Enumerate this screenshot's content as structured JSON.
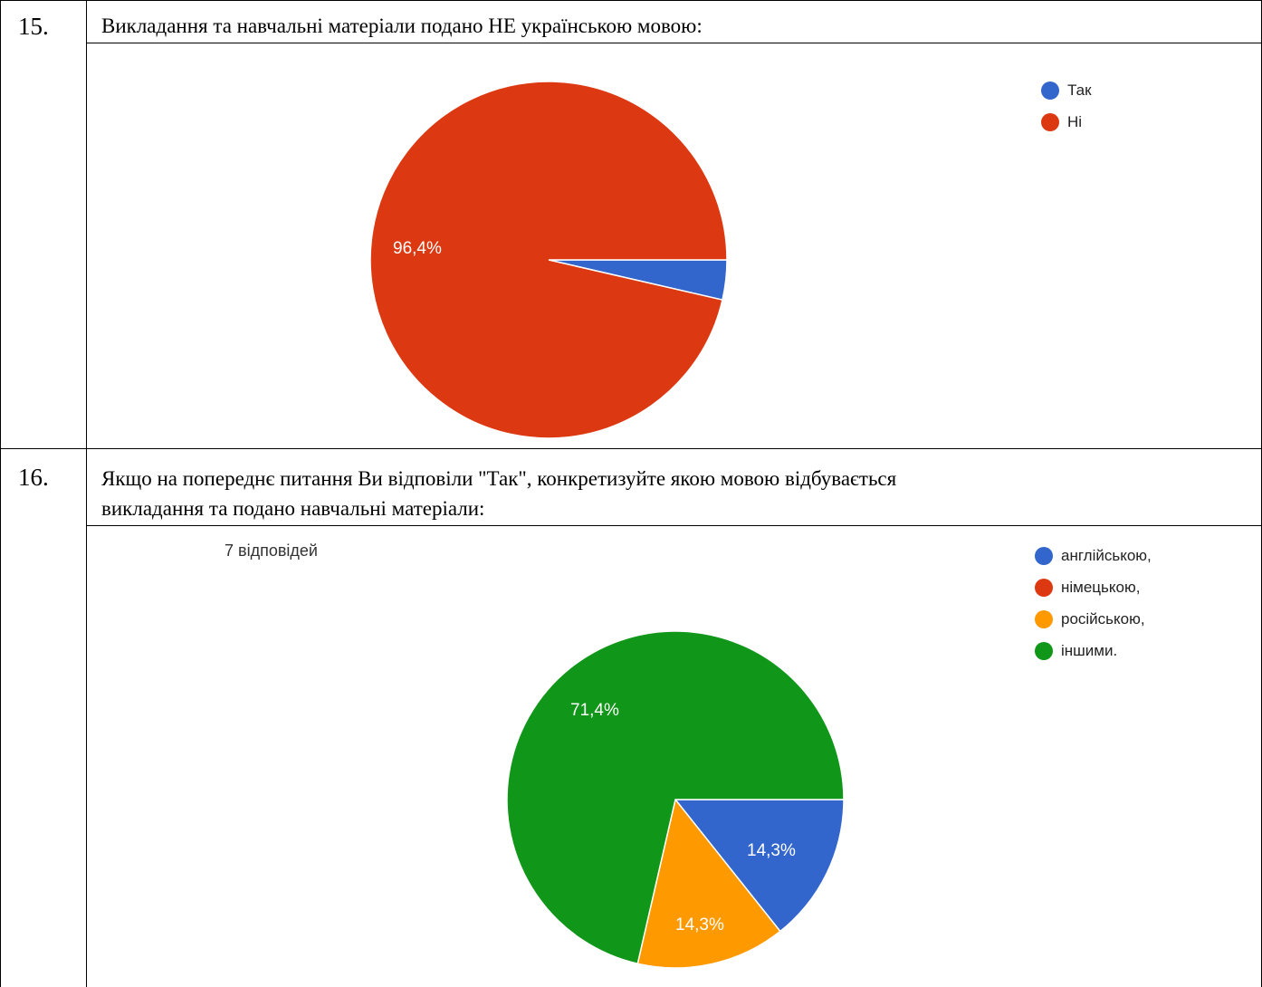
{
  "questions": [
    {
      "number": "15.",
      "text_lines": [
        "Викладання та навчальні матеріали подано НЕ українською мовою:"
      ],
      "count_label": "",
      "chart_data": {
        "type": "pie",
        "title": "",
        "categories": [
          "Так",
          "Ні"
        ],
        "values": [
          3.6,
          96.4
        ],
        "colors": [
          "#3366cc",
          "#dc3912"
        ],
        "slice_labels": [
          "",
          "96,4%"
        ],
        "legend_position": "top-right"
      }
    },
    {
      "number": "16.",
      "text_lines": [
        "Якщо на попереднє питання Ви відповіли \"Так\", конкретизуйте якою мовою відбувається",
        "викладання та подано навчальні матеріали:"
      ],
      "count_label": "7 відповідей",
      "chart_data": {
        "type": "pie",
        "title": "",
        "categories": [
          "англійською,",
          "німецькою,",
          "російською,",
          "іншими."
        ],
        "values": [
          14.3,
          0,
          14.3,
          71.4
        ],
        "colors": [
          "#3366cc",
          "#dc3912",
          "#ff9900",
          "#109618"
        ],
        "slice_labels": [
          "14,3%",
          "",
          "14,3%",
          "71,4%"
        ],
        "legend_position": "top-right"
      }
    }
  ]
}
